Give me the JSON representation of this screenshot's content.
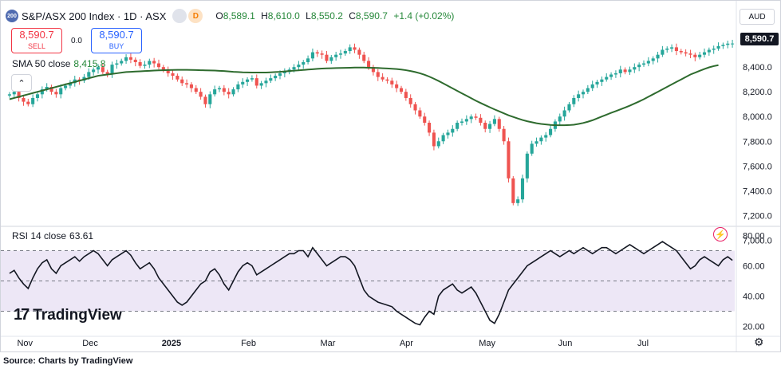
{
  "header": {
    "symbol_icon": "200",
    "title": "S&P/ASX 200 Index · 1D · ASX",
    "ohlc": [
      {
        "label": "O",
        "value": "8,589.1"
      },
      {
        "label": "H",
        "value": "8,610.0"
      },
      {
        "label": "L",
        "value": "8,550.2"
      },
      {
        "label": "C",
        "value": "8,590.7"
      }
    ],
    "change": "+1.4 (+0.02%)",
    "d_badge": "D"
  },
  "trade": {
    "sell_price": "8,590.7",
    "sell_label": "SELL",
    "spread": "0.0",
    "buy_price": "8,590.7",
    "buy_label": "BUY"
  },
  "sma_legend": {
    "label": "SMA 50 close",
    "value": "8,415.8"
  },
  "rsi_legend": {
    "label": "RSI 14 close",
    "value": "63.61"
  },
  "currency": "AUD",
  "last_price": "8,590.7",
  "branding": "TradingView",
  "source_note": "Source: Charts by TradingView",
  "colors": {
    "up": "#26a69a",
    "down": "#ef5350",
    "sma": "#2e6b2e",
    "rsi": "#131722",
    "rsi_band": "#ede7f6",
    "rsi_os_fill": "#f8bbd0",
    "accent_up": "#26883a",
    "sell": "#f23645",
    "buy": "#2962ff"
  },
  "chart_data": [
    {
      "type": "candlestick",
      "title": "S&P/ASX 200 Index",
      "x_ticks": [
        "Nov",
        "Dec",
        "2025",
        "Feb",
        "Mar",
        "Apr",
        "May",
        "Jun",
        "Jul"
      ],
      "y_ticks": [
        7000,
        7200,
        7400,
        7600,
        7800,
        8000,
        8200,
        8400
      ],
      "y_range": [
        6970,
        8730
      ],
      "close": [
        8180,
        8200,
        8150,
        8120,
        8100,
        8150,
        8180,
        8220,
        8240,
        8200,
        8180,
        8230,
        8250,
        8270,
        8300,
        8290,
        8320,
        8360,
        8380,
        8400,
        8360,
        8340,
        8420,
        8430,
        8450,
        8480,
        8460,
        8440,
        8410,
        8420,
        8450,
        8430,
        8400,
        8380,
        8350,
        8330,
        8300,
        8270,
        8260,
        8230,
        8200,
        8160,
        8100,
        8180,
        8220,
        8230,
        8200,
        8180,
        8220,
        8260,
        8280,
        8300,
        8310,
        8250,
        8270,
        8290,
        8310,
        8330,
        8350,
        8360,
        8380,
        8400,
        8420,
        8440,
        8470,
        8520,
        8510,
        8500,
        8450,
        8480,
        8500,
        8510,
        8530,
        8560,
        8540,
        8500,
        8450,
        8400,
        8360,
        8320,
        8300,
        8290,
        8260,
        8230,
        8200,
        8150,
        8100,
        8050,
        8000,
        7950,
        7870,
        7760,
        7800,
        7850,
        7870,
        7900,
        7950,
        7960,
        7980,
        8000,
        7990,
        7950,
        7900,
        7940,
        7980,
        7900,
        7800,
        7500,
        7300,
        7330,
        7500,
        7700,
        7780,
        7800,
        7830,
        7850,
        7900,
        7960,
        8000,
        8050,
        8100,
        8150,
        8180,
        8200,
        8230,
        8260,
        8280,
        8300,
        8320,
        8340,
        8350,
        8380,
        8360,
        8380,
        8400,
        8420,
        8430,
        8450,
        8470,
        8500,
        8540,
        8550,
        8560,
        8530,
        8520,
        8510,
        8500,
        8480,
        8500,
        8520,
        8540,
        8550,
        8570,
        8580,
        8590,
        8590.7
      ],
      "series": [
        {
          "name": "SMA 50 close",
          "values": [
            8140,
            8150,
            8160,
            8170,
            8180,
            8190,
            8200,
            8210,
            8220,
            8230,
            8240,
            8250,
            8260,
            8270,
            8280,
            8290,
            8300,
            8310,
            8320,
            8330,
            8335,
            8340,
            8345,
            8350,
            8355,
            8360,
            8362,
            8364,
            8366,
            8368,
            8370,
            8372,
            8374,
            8375,
            8376,
            8377,
            8378,
            8378,
            8378,
            8377,
            8376,
            8375,
            8374,
            8373,
            8372,
            8370,
            8368,
            8365,
            8362,
            8360,
            8358,
            8357,
            8356,
            8356,
            8356,
            8356,
            8358,
            8360,
            8362,
            8365,
            8368,
            8371,
            8374,
            8377,
            8380,
            8383,
            8386,
            8388,
            8390,
            8391,
            8392,
            8393,
            8394,
            8395,
            8396,
            8396,
            8396,
            8395,
            8394,
            8393,
            8391,
            8389,
            8387,
            8384,
            8380,
            8375,
            8368,
            8360,
            8350,
            8338,
            8323,
            8306,
            8288,
            8268,
            8248,
            8228,
            8208,
            8188,
            8168,
            8148,
            8128,
            8110,
            8092,
            8075,
            8058,
            8042,
            8026,
            8010,
            7997,
            7984,
            7972,
            7962,
            7954,
            7946,
            7940,
            7936,
            7932,
            7930,
            7930,
            7930,
            7931,
            7934,
            7940,
            7948,
            7958,
            7970,
            7985,
            8000,
            8015,
            8030,
            8044,
            8058,
            8073,
            8088,
            8105,
            8122,
            8140,
            8160,
            8180,
            8200,
            8220,
            8240,
            8260,
            8280,
            8300,
            8320,
            8340,
            8355,
            8370,
            8385,
            8398,
            8408,
            8415.8
          ]
        }
      ]
    },
    {
      "type": "line",
      "title": "RSI 14 close",
      "y_ticks": [
        20,
        40,
        60,
        80
      ],
      "y_range": [
        15,
        85
      ],
      "bands": {
        "upper": 70,
        "middle": 50,
        "lower": 30
      },
      "x_ticks": [
        "Nov",
        "Dec",
        "2025",
        "Feb",
        "Mar",
        "Apr",
        "May",
        "Jun",
        "Jul"
      ],
      "series": [
        {
          "name": "RSI 14 close",
          "values": [
            55,
            57,
            52,
            48,
            45,
            52,
            58,
            62,
            64,
            58,
            55,
            60,
            62,
            64,
            66,
            63,
            66,
            68,
            70,
            68,
            64,
            60,
            64,
            66,
            68,
            70,
            67,
            62,
            58,
            60,
            62,
            58,
            52,
            48,
            44,
            40,
            36,
            34,
            36,
            40,
            44,
            48,
            50,
            56,
            58,
            54,
            48,
            44,
            50,
            56,
            60,
            62,
            60,
            54,
            56,
            58,
            60,
            62,
            64,
            66,
            68,
            68,
            70,
            70,
            66,
            72,
            68,
            64,
            60,
            62,
            64,
            66,
            66,
            64,
            60,
            52,
            44,
            40,
            38,
            36,
            35,
            34,
            33,
            30,
            28,
            26,
            24,
            22,
            21,
            26,
            30,
            28,
            40,
            44,
            46,
            48,
            44,
            42,
            44,
            46,
            42,
            36,
            30,
            24,
            22,
            28,
            36,
            44,
            48,
            52,
            56,
            60,
            62,
            64,
            66,
            68,
            70,
            68,
            66,
            68,
            70,
            68,
            70,
            72,
            70,
            68,
            70,
            72,
            72,
            70,
            68,
            70,
            72,
            74,
            72,
            70,
            68,
            70,
            72,
            74,
            76,
            74,
            72,
            70,
            66,
            62,
            58,
            60,
            64,
            66,
            64,
            62,
            60,
            64,
            66,
            63.61
          ]
        }
      ]
    }
  ]
}
